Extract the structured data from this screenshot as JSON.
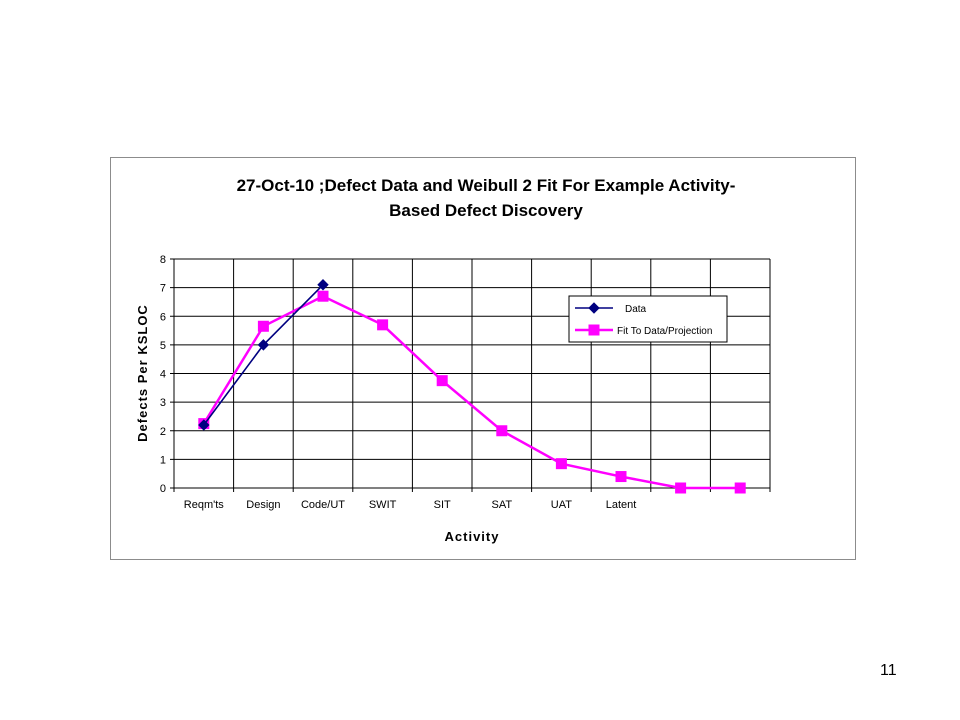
{
  "page": {
    "number": "11"
  },
  "chart_data": {
    "type": "line",
    "title": "27-Oct-10 ;Defect Data and  Weibull  2  Fit  For Example Activity-",
    "subtitle": "Based Defect Discovery",
    "xlabel": "Activity",
    "ylabel": "Defects Per KSLOC",
    "ylim": [
      0,
      8
    ],
    "yticks": [
      0,
      1,
      2,
      3,
      4,
      5,
      6,
      7,
      8
    ],
    "grid": true,
    "legend_position": "top-right",
    "categories": [
      "Reqm'ts",
      "Design",
      "Code/UT",
      "SWIT",
      "SIT",
      "SAT",
      "UAT",
      "Latent",
      "",
      ""
    ],
    "series": [
      {
        "name": "Data",
        "color": "#000080",
        "marker": "diamond",
        "values": [
          2.2,
          5.0,
          7.1,
          null,
          null,
          null,
          null,
          null,
          null,
          null
        ]
      },
      {
        "name": "Fit To Data/Projection",
        "color": "#ff00ff",
        "marker": "square",
        "values": [
          2.25,
          5.65,
          6.7,
          5.7,
          3.75,
          2.0,
          0.85,
          0.4,
          0.0,
          0.0
        ]
      }
    ]
  }
}
